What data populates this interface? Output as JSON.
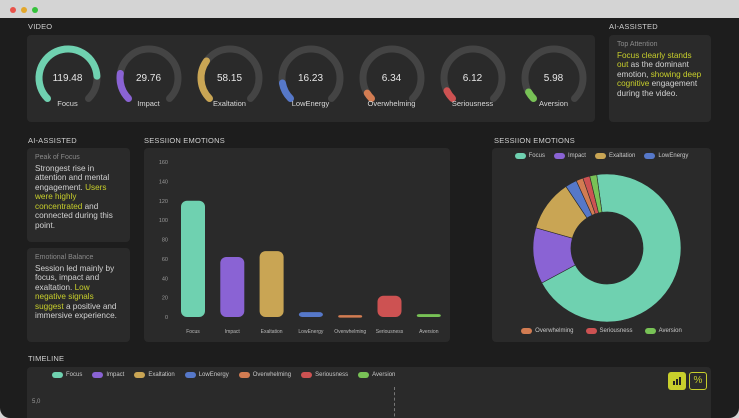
{
  "window_dots": [
    "#e9524a",
    "#e3a72b",
    "#35c23b"
  ],
  "video": {
    "label": "VIDEO",
    "gauges": [
      {
        "name": "Focus",
        "value": "119.48",
        "fill": 0.82,
        "color": "#6fd1b0"
      },
      {
        "name": "Impact",
        "value": "29.76",
        "fill": 0.2,
        "color": "#8a63d4"
      },
      {
        "name": "Exaltation",
        "value": "58.15",
        "fill": 0.3,
        "color": "#c9a554"
      },
      {
        "name": "LowEnergy",
        "value": "16.23",
        "fill": 0.13,
        "color": "#5678c9"
      },
      {
        "name": "Overwhelming",
        "value": "6.34",
        "fill": 0.05,
        "color": "#d27c52"
      },
      {
        "name": "Seriousness",
        "value": "6.12",
        "fill": 0.07,
        "color": "#cd5252"
      },
      {
        "name": "Aversion",
        "value": "5.98",
        "fill": 0.06,
        "color": "#78c256"
      }
    ]
  },
  "top_ai": {
    "label": "AI-ASSISTED",
    "title": "Top Attention",
    "parts": [
      {
        "t": "Focus clearly stands out",
        "hl": true
      },
      {
        "t": " as the dominant emotion, ",
        "hl": false
      },
      {
        "t": "showing deep cognitive",
        "hl": true
      },
      {
        "t": " engagement during the video.",
        "hl": false
      }
    ]
  },
  "side_ai": {
    "label": "AI-ASSISTED",
    "cards": [
      {
        "title": "Peak of Focus",
        "parts": [
          {
            "t": "Strongest rise in attention and mental engagement. ",
            "hl": false
          },
          {
            "t": "Users were highly concentrated",
            "hl": true
          },
          {
            "t": " and connected during this point.",
            "hl": false
          }
        ]
      },
      {
        "title": "Emotional Balance",
        "parts": [
          {
            "t": "Session led mainly by focus, impact and exaltation. ",
            "hl": false
          },
          {
            "t": "Low negative signals suggest",
            "hl": true
          },
          {
            "t": " a positive and immersive experience.",
            "hl": false
          }
        ]
      }
    ]
  },
  "chart_data": [
    {
      "type": "bar",
      "title": "SESSIION EMOTIONS",
      "categories": [
        "Focus",
        "Impact",
        "Exaltation",
        "LowEnergy",
        "Overwhelming",
        "Seriousness",
        "Aversion"
      ],
      "values": [
        120,
        62,
        68,
        5,
        2,
        22,
        3
      ],
      "ylim": [
        0,
        160
      ],
      "yticks": [
        "0",
        "20",
        "40",
        "60",
        "80",
        "100",
        "120",
        "140",
        "160"
      ],
      "colors": [
        "#6fd1b0",
        "#8a63d4",
        "#c9a554",
        "#5678c9",
        "#d27c52",
        "#cd5252",
        "#78c256"
      ],
      "grid": false
    },
    {
      "type": "pie",
      "title": "SESSIION EMOTIONS",
      "categories": [
        "Focus",
        "Impact",
        "Exaltation",
        "LowEnergy",
        "Overwhelming",
        "Seriousness",
        "Aversion"
      ],
      "values": [
        68,
        12,
        11,
        2.5,
        1.5,
        1.5,
        1.5
      ],
      "colors": [
        "#6fd1b0",
        "#8a63d4",
        "#c9a554",
        "#5678c9",
        "#d27c52",
        "#cd5252",
        "#78c256"
      ],
      "legend": "top-and-bottom"
    }
  ],
  "timeline": {
    "label": "TIMELINE",
    "y_tick": "5,0",
    "legend": [
      "Focus",
      "Impact",
      "Exaltation",
      "LowEnergy",
      "Overwhelming",
      "Seriousness",
      "Aversion"
    ],
    "buttons": {
      "bar_icon": "bar-chart-icon",
      "percent": "%"
    },
    "accent": "#c8cf2c"
  }
}
